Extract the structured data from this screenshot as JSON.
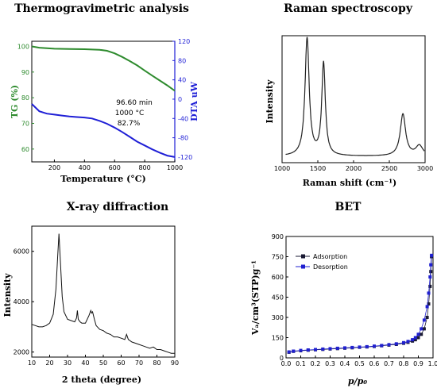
{
  "chart_data": [
    {
      "type": "line",
      "title": "Thermogravimetric analysis",
      "xlabel": "Temperature (°C)",
      "ylabel_left": "TG (%)",
      "ylabel_right": "DTA uW",
      "xlim": [
        50,
        1000
      ],
      "ylim_left": [
        55,
        102
      ],
      "ylim_right": [
        -130,
        120
      ],
      "xticks": [
        "200",
        "400",
        "600",
        "800",
        "1000"
      ],
      "yticks_left": [
        "60",
        "70",
        "80",
        "90",
        "100"
      ],
      "yticks_right": [
        "120",
        "80",
        "40",
        "0",
        "-40",
        "-80",
        "-120"
      ],
      "annotation": [
        "96.60 min",
        "1000 °C",
        "82.7%"
      ],
      "colors": {
        "tg": "#2e8b2e",
        "dta": "#1f1fd6"
      },
      "series": [
        {
          "name": "TG (%)",
          "axis": "left",
          "x": [
            50,
            100,
            200,
            300,
            400,
            500,
            550,
            600,
            650,
            700,
            750,
            800,
            850,
            900,
            950,
            1000
          ],
          "values": [
            100,
            99.5,
            99.1,
            99.0,
            98.9,
            98.7,
            98.3,
            97.3,
            95.9,
            94.3,
            92.6,
            90.6,
            88.6,
            86.7,
            84.8,
            82.7
          ]
        },
        {
          "name": "DTA uW",
          "axis": "right",
          "x": [
            50,
            100,
            150,
            200,
            250,
            300,
            350,
            400,
            450,
            500,
            550,
            600,
            650,
            700,
            750,
            800,
            850,
            900,
            950,
            1000
          ],
          "values": [
            -10,
            -25,
            -30,
            -32,
            -34,
            -36,
            -37,
            -38,
            -40,
            -45,
            -51,
            -59,
            -68,
            -78,
            -88,
            -96,
            -104,
            -111,
            -117,
            -120
          ]
        }
      ]
    },
    {
      "type": "line",
      "title": "Raman spectroscopy",
      "xlabel": "Raman shift (cm⁻¹)",
      "ylabel": "Intensity",
      "xlim": [
        1000,
        3000
      ],
      "ylim": [
        0,
        1
      ],
      "xticks": [
        "1000",
        "1500",
        "2000",
        "2500",
        "3000"
      ],
      "peaks": [
        {
          "center": 1350,
          "height": 0.93,
          "width": 35
        },
        {
          "center": 1580,
          "height": 0.73,
          "width": 30
        },
        {
          "center": 2690,
          "height": 0.33,
          "width": 45
        },
        {
          "center": 2920,
          "height": 0.08,
          "width": 60
        }
      ],
      "baseline": 0.05
    },
    {
      "type": "line",
      "title": "X-ray diffraction",
      "xlabel": "2 theta (degree)",
      "ylabel": "Intensity",
      "xlim": [
        10,
        90
      ],
      "ylim": [
        1800,
        7000
      ],
      "xticks": [
        "10",
        "20",
        "30",
        "40",
        "50",
        "60",
        "70",
        "80",
        "90"
      ],
      "yticks": [
        "2000",
        "4000",
        "6000"
      ],
      "x": [
        10,
        12,
        14,
        16,
        18,
        20,
        22,
        23.5,
        24.5,
        25.2,
        26,
        27,
        28,
        30,
        32,
        34,
        35,
        35.5,
        36,
        37,
        38,
        40,
        42,
        43,
        43.5,
        44,
        45,
        46,
        48,
        50,
        52,
        54,
        56,
        58,
        60,
        62,
        63,
        64,
        66,
        68,
        70,
        72,
        74,
        76,
        78,
        80,
        82,
        84,
        86,
        88,
        90
      ],
      "values": [
        3100,
        3050,
        3000,
        3000,
        3050,
        3150,
        3500,
        4500,
        5800,
        6700,
        5600,
        4200,
        3600,
        3300,
        3250,
        3200,
        3350,
        3650,
        3300,
        3200,
        3150,
        3150,
        3450,
        3650,
        3550,
        3600,
        3300,
        3050,
        2900,
        2850,
        2750,
        2700,
        2600,
        2600,
        2550,
        2500,
        2700,
        2500,
        2400,
        2350,
        2300,
        2250,
        2200,
        2150,
        2200,
        2100,
        2100,
        2050,
        2000,
        1950,
        1950
      ]
    },
    {
      "type": "scatter",
      "title": "BET",
      "xlabel": "p/p₀",
      "ylabel": "Vₐ/cm³(STP)g⁻¹",
      "xlim": [
        0,
        1
      ],
      "ylim": [
        0,
        900
      ],
      "xticks": [
        "0.0",
        "0.1",
        "0.2",
        "0.3",
        "0.4",
        "0.5",
        "0.6",
        "0.7",
        "0.8",
        "0.9",
        "1.0"
      ],
      "yticks": [
        "0",
        "150",
        "300",
        "450",
        "600",
        "750",
        "900"
      ],
      "series": [
        {
          "name": "Adsorption",
          "color": "#1a1a33",
          "x": [
            0.02,
            0.05,
            0.1,
            0.15,
            0.2,
            0.25,
            0.3,
            0.35,
            0.4,
            0.45,
            0.5,
            0.55,
            0.6,
            0.65,
            0.7,
            0.75,
            0.8,
            0.83,
            0.86,
            0.88,
            0.9,
            0.92,
            0.94,
            0.96,
            0.97,
            0.98,
            0.985,
            0.99
          ],
          "values": [
            42,
            48,
            53,
            57,
            60,
            63,
            66,
            69,
            72,
            75,
            78,
            81,
            85,
            90,
            95,
            100,
            108,
            115,
            125,
            135,
            150,
            175,
            215,
            300,
            400,
            530,
            640,
            750
          ]
        },
        {
          "name": "Desorption",
          "color": "#2020d0",
          "x": [
            0.02,
            0.05,
            0.1,
            0.15,
            0.2,
            0.25,
            0.3,
            0.35,
            0.4,
            0.45,
            0.5,
            0.55,
            0.6,
            0.65,
            0.7,
            0.75,
            0.8,
            0.83,
            0.86,
            0.88,
            0.9,
            0.92,
            0.94,
            0.96,
            0.97,
            0.98,
            0.985,
            0.99
          ],
          "values": [
            44,
            50,
            55,
            59,
            62,
            65,
            68,
            71,
            74,
            77,
            80,
            83,
            87,
            92,
            98,
            104,
            113,
            122,
            135,
            150,
            175,
            215,
            280,
            380,
            480,
            600,
            690,
            760
          ]
        }
      ]
    }
  ]
}
